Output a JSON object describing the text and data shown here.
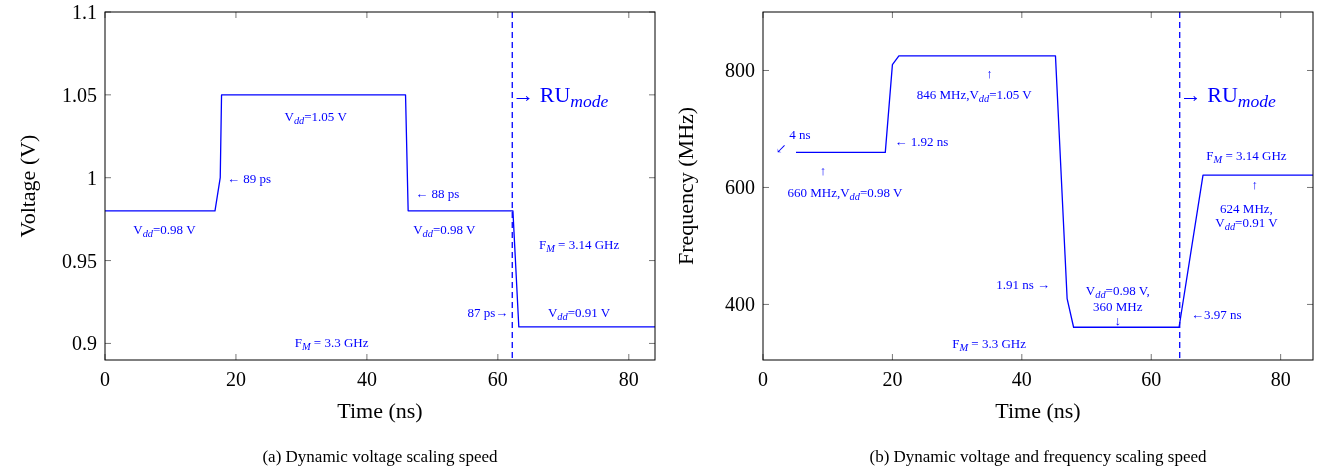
{
  "chart_data": [
    {
      "type": "line",
      "title": "(a) Dynamic voltage scaling speed",
      "xlabel": "Time (ns)",
      "ylabel": "Voltage (V)",
      "xlim": [
        0,
        84
      ],
      "ylim": [
        0.89,
        1.1
      ],
      "xticks": [
        0,
        20,
        40,
        60,
        80
      ],
      "yticks": [
        0.9,
        0.95,
        1,
        1.05,
        1.1
      ],
      "grid": false,
      "marker": "none",
      "line_style": "solid",
      "series": [
        {
          "color": "#0000ff",
          "x": [
            0,
            16.8,
            17.6,
            17.8,
            45.9,
            46.3,
            62.3,
            63.2,
            84
          ],
          "values": [
            0.98,
            0.98,
            1.0,
            1.05,
            1.05,
            0.98,
            0.98,
            0.91,
            0.91
          ]
        }
      ],
      "ref_lines": [
        {
          "axis": "x",
          "value": 62.2,
          "label": "→ RU$_{mode}$",
          "color": "#0000ff",
          "line_style": "dashed"
        }
      ],
      "annotations": [
        "V$_{dd}$=0.98 V",
        "V$_{dd}$=1.05 V",
        "← 89 ps",
        "← 88 ps",
        "V$_{dd}$=0.98 V",
        "F$_{M}$ = 3.14 GHz",
        "87 ps→",
        "V$_{dd}$=0.91 V",
        "F$_{M}$ = 3.3 GHz"
      ]
    },
    {
      "type": "line",
      "title": "(b) Dynamic voltage and frequency scaling speed",
      "xlabel": "Time (ns)",
      "ylabel": "Frequency (MHz)",
      "xlim": [
        0,
        85
      ],
      "ylim": [
        305,
        900
      ],
      "xticks": [
        0,
        20,
        40,
        60,
        80
      ],
      "yticks": [
        400,
        600,
        800
      ],
      "grid": false,
      "marker": "none",
      "line_style": "solid",
      "series": [
        {
          "color": "#0000ff",
          "x": [
            5.1,
            18.9,
            20.0,
            21.0,
            45.2,
            47.0,
            48.0,
            64.3,
            68.0,
            85
          ],
          "values": [
            660,
            660,
            810,
            825,
            825,
            410,
            361,
            361,
            621,
            621
          ]
        }
      ],
      "ref_lines": [
        {
          "axis": "x",
          "value": 64.4,
          "label": "→ RU$_{mode}$",
          "color": "#0000ff",
          "line_style": "dashed"
        }
      ],
      "annotations": [
        "4 ns",
        "↙",
        "↑",
        "660 MHz,V$_{dd}$=0.98 V",
        "← 1.92 ns",
        "↑",
        "846 MHz,V$_{dd}$=1.05 V",
        "1.91 ns →",
        "V$_{dd}$=0.98 V,",
        "360 MHz",
        "↓",
        "←3.97 ns",
        "F$_{M}$ = 3.14 GHz",
        "↑",
        "624 MHz,",
        "V$_{dd}$=0.91 V",
        "F$_{M}$ = 3.3 GHz"
      ]
    }
  ]
}
